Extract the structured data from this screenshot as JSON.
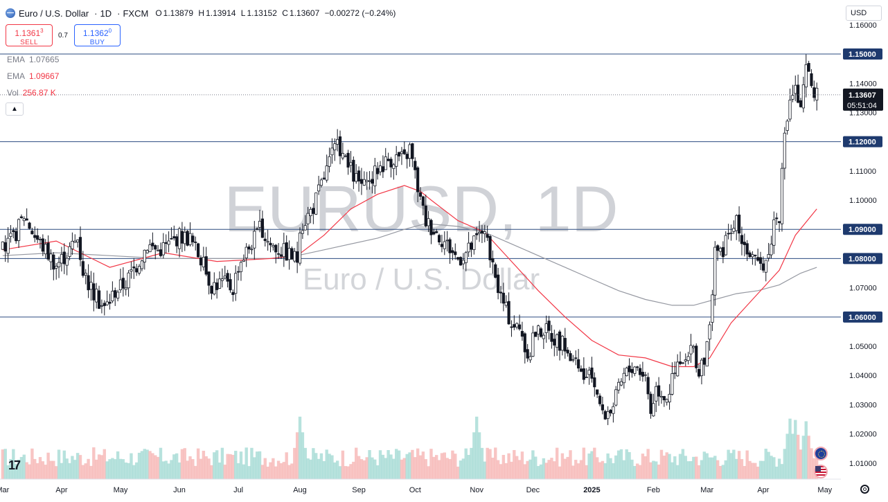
{
  "header": {
    "symbol": "Euro / U.S. Dollar",
    "interval": "1D",
    "source": "FXCM",
    "open_label": "O",
    "open": "1.13879",
    "high_label": "H",
    "high": "1.13914",
    "low_label": "L",
    "low": "1.13152",
    "close_label": "C",
    "close": "1.13607",
    "change": "−0.00272 (−0.24%)"
  },
  "trade": {
    "sell_price": "1.1361",
    "sell_sup": "3",
    "sell_label": "SELL",
    "spread": "0.7",
    "buy_price": "1.1362",
    "buy_sup": "0",
    "buy_label": "BUY"
  },
  "indicators": [
    {
      "name": "EMA",
      "value": "1.07665",
      "color": "#787b86"
    },
    {
      "name": "EMA",
      "value": "1.09667",
      "color": "#f23645"
    },
    {
      "name": "Vol",
      "value": "256.87 K",
      "color": "#f23645"
    }
  ],
  "collapse_icon": "chevron-up-icon",
  "currency_button": "USD",
  "watermark": {
    "line1": "EURUSD, 1D",
    "line2": "Euro / U.S. Dollar"
  },
  "current_price": {
    "price": "1.13607",
    "countdown": "05:51:04"
  },
  "colors": {
    "up": "#26a69a",
    "down": "#ef5350",
    "candle": "#131722",
    "hline": "#2a4a7f",
    "ema_fast": "#f23645",
    "ema_slow": "#9598a1",
    "price_tag": "#131722"
  },
  "chart_data": {
    "type": "candlestick",
    "title": "EURUSD, 1D",
    "subtitle": "Euro / U.S. Dollar",
    "ylim": [
      1.0045,
      1.1685
    ],
    "y_ticks": [
      "1.16000",
      "1.14000",
      "1.13000",
      "1.11000",
      "1.10000",
      "1.07000",
      "1.05000",
      "1.04000",
      "1.03000",
      "1.02000",
      "1.01000"
    ],
    "x_ticks": [
      {
        "label": "Mar",
        "t": 0
      },
      {
        "label": "Apr",
        "t": 22
      },
      {
        "label": "May",
        "t": 44
      },
      {
        "label": "Jun",
        "t": 66
      },
      {
        "label": "Jul",
        "t": 88
      },
      {
        "label": "Aug",
        "t": 111
      },
      {
        "label": "Sep",
        "t": 133
      },
      {
        "label": "Oct",
        "t": 154
      },
      {
        "label": "Nov",
        "t": 177
      },
      {
        "label": "Dec",
        "t": 198
      },
      {
        "label": "2025",
        "t": 220
      },
      {
        "label": "Feb",
        "t": 243
      },
      {
        "label": "Mar",
        "t": 263
      },
      {
        "label": "Apr",
        "t": 284
      },
      {
        "label": "May",
        "t": 307
      }
    ],
    "horizontal_levels": [
      "1.15000",
      "1.12000",
      "1.09000",
      "1.08000",
      "1.06000"
    ],
    "current_price": 1.13607,
    "close_path": [
      [
        0,
        1.083
      ],
      [
        4,
        1.087
      ],
      [
        8,
        1.095
      ],
      [
        12,
        1.088
      ],
      [
        16,
        1.083
      ],
      [
        20,
        1.078
      ],
      [
        24,
        1.082
      ],
      [
        28,
        1.087
      ],
      [
        30,
        1.076
      ],
      [
        34,
        1.068
      ],
      [
        38,
        1.063
      ],
      [
        42,
        1.069
      ],
      [
        46,
        1.072
      ],
      [
        50,
        1.078
      ],
      [
        54,
        1.085
      ],
      [
        58,
        1.083
      ],
      [
        62,
        1.085
      ],
      [
        66,
        1.088
      ],
      [
        70,
        1.087
      ],
      [
        74,
        1.08
      ],
      [
        78,
        1.071
      ],
      [
        82,
        1.072
      ],
      [
        86,
        1.07
      ],
      [
        88,
        1.078
      ],
      [
        92,
        1.084
      ],
      [
        96,
        1.09
      ],
      [
        100,
        1.085
      ],
      [
        104,
        1.083
      ],
      [
        108,
        1.081
      ],
      [
        110,
        1.08
      ],
      [
        112,
        1.092
      ],
      [
        116,
        1.098
      ],
      [
        120,
        1.108
      ],
      [
        124,
        1.118
      ],
      [
        126,
        1.118
      ],
      [
        128,
        1.113
      ],
      [
        132,
        1.107
      ],
      [
        136,
        1.104
      ],
      [
        140,
        1.111
      ],
      [
        144,
        1.114
      ],
      [
        148,
        1.115
      ],
      [
        150,
        1.114
      ],
      [
        152,
        1.118
      ],
      [
        154,
        1.109
      ],
      [
        156,
        1.1
      ],
      [
        158,
        1.093
      ],
      [
        162,
        1.089
      ],
      [
        166,
        1.085
      ],
      [
        170,
        1.08
      ],
      [
        174,
        1.083
      ],
      [
        178,
        1.088
      ],
      [
        180,
        1.091
      ],
      [
        182,
        1.079
      ],
      [
        186,
        1.067
      ],
      [
        190,
        1.058
      ],
      [
        194,
        1.055
      ],
      [
        196,
        1.043
      ],
      [
        198,
        1.054
      ],
      [
        202,
        1.056
      ],
      [
        206,
        1.053
      ],
      [
        210,
        1.05
      ],
      [
        214,
        1.043
      ],
      [
        218,
        1.038
      ],
      [
        220,
        1.04
      ],
      [
        222,
        1.035
      ],
      [
        224,
        1.026
      ],
      [
        228,
        1.03
      ],
      [
        232,
        1.04
      ],
      [
        236,
        1.044
      ],
      [
        240,
        1.04
      ],
      [
        242,
        1.028
      ],
      [
        244,
        1.036
      ],
      [
        248,
        1.033
      ],
      [
        250,
        1.038
      ],
      [
        252,
        1.043
      ],
      [
        256,
        1.045
      ],
      [
        258,
        1.05
      ],
      [
        260,
        1.04
      ],
      [
        262,
        1.045
      ],
      [
        264,
        1.056
      ],
      [
        266,
        1.085
      ],
      [
        268,
        1.081
      ],
      [
        270,
        1.086
      ],
      [
        274,
        1.092
      ],
      [
        278,
        1.083
      ],
      [
        282,
        1.077
      ],
      [
        286,
        1.081
      ],
      [
        288,
        1.093
      ],
      [
        290,
        1.095
      ],
      [
        292,
        1.121
      ],
      [
        294,
        1.135
      ],
      [
        296,
        1.138
      ],
      [
        298,
        1.13
      ],
      [
        300,
        1.145
      ],
      [
        302,
        1.14
      ],
      [
        304,
        1.136
      ]
    ],
    "ema_fast": [
      [
        0,
        1.083
      ],
      [
        20,
        1.086
      ],
      [
        40,
        1.077
      ],
      [
        60,
        1.082
      ],
      [
        80,
        1.079
      ],
      [
        100,
        1.08
      ],
      [
        110,
        1.081
      ],
      [
        120,
        1.088
      ],
      [
        130,
        1.097
      ],
      [
        140,
        1.102
      ],
      [
        150,
        1.105
      ],
      [
        156,
        1.103
      ],
      [
        160,
        1.1
      ],
      [
        170,
        1.093
      ],
      [
        180,
        1.089
      ],
      [
        190,
        1.079
      ],
      [
        200,
        1.069
      ],
      [
        210,
        1.06
      ],
      [
        220,
        1.052
      ],
      [
        230,
        1.047
      ],
      [
        240,
        1.046
      ],
      [
        250,
        1.043
      ],
      [
        258,
        1.043
      ],
      [
        264,
        1.046
      ],
      [
        272,
        1.058
      ],
      [
        280,
        1.066
      ],
      [
        290,
        1.076
      ],
      [
        296,
        1.088
      ],
      [
        304,
        1.097
      ]
    ],
    "ema_slow": [
      [
        0,
        1.081
      ],
      [
        20,
        1.082
      ],
      [
        40,
        1.081
      ],
      [
        60,
        1.08
      ],
      [
        80,
        1.08
      ],
      [
        100,
        1.08
      ],
      [
        110,
        1.081
      ],
      [
        120,
        1.083
      ],
      [
        140,
        1.087
      ],
      [
        150,
        1.09
      ],
      [
        158,
        1.092
      ],
      [
        170,
        1.091
      ],
      [
        180,
        1.089
      ],
      [
        190,
        1.085
      ],
      [
        200,
        1.081
      ],
      [
        210,
        1.077
      ],
      [
        220,
        1.073
      ],
      [
        230,
        1.069
      ],
      [
        240,
        1.066
      ],
      [
        250,
        1.064
      ],
      [
        258,
        1.064
      ],
      [
        266,
        1.066
      ],
      [
        274,
        1.068
      ],
      [
        282,
        1.069
      ],
      [
        290,
        1.071
      ],
      [
        298,
        1.075
      ],
      [
        304,
        1.077
      ]
    ],
    "volume_spikes": [
      [
        111,
        0.95
      ],
      [
        177,
        0.95
      ],
      [
        294,
        0.92
      ],
      [
        296,
        0.9
      ],
      [
        300,
        0.88
      ]
    ]
  }
}
